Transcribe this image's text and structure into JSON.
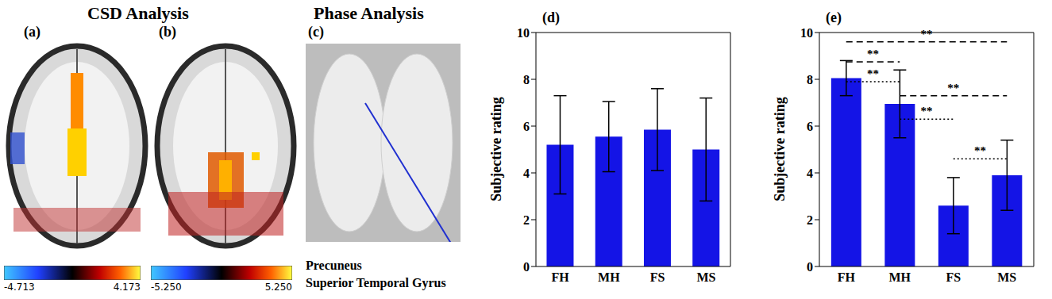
{
  "headings": {
    "csd": "CSD Analysis",
    "phase": "Phase Analysis"
  },
  "brain_panels": [
    {
      "label": "(a)",
      "colorbar": {
        "range": [
          -4.713,
          4.173
        ],
        "ticks": [
          {
            "value": -4.713,
            "label": "-4.713"
          },
          {
            "value": 4.173,
            "label": "4.173"
          }
        ]
      }
    },
    {
      "label": "(b)",
      "colorbar": {
        "range": [
          -5.25,
          5.25
        ],
        "ticks": [
          {
            "value": -5.25,
            "label": "-5.250"
          },
          {
            "value": 5.25,
            "label": "5.250"
          }
        ]
      }
    },
    {
      "label": "(c)",
      "regions": [
        "Precuneus",
        "Superior Temporal Gyrus"
      ]
    }
  ],
  "chart_data": [
    {
      "type": "bar",
      "title": "(d)",
      "ylabel": "Subjective rating",
      "categories": [
        "FH",
        "MH",
        "FS",
        "MS"
      ],
      "values": [
        5.2,
        5.55,
        5.85,
        5.0
      ],
      "errors": [
        2.1,
        1.5,
        1.75,
        2.2
      ],
      "color": "#1414e6",
      "ylim": [
        0,
        10
      ],
      "yticks": [
        0,
        2,
        4,
        6,
        8,
        10
      ],
      "annotations": []
    },
    {
      "type": "bar",
      "title": "(e)",
      "ylabel": "Subjective rating",
      "categories": [
        "FH",
        "MH",
        "FS",
        "MS"
      ],
      "values": [
        8.05,
        6.95,
        2.6,
        3.9
      ],
      "errors": [
        0.75,
        1.45,
        1.2,
        1.5
      ],
      "color": "#1414e6",
      "ylim": [
        0,
        10
      ],
      "yticks": [
        0,
        2,
        4,
        6,
        8,
        10
      ],
      "annotations": [
        {
          "from": "FH",
          "to": "MS",
          "text": "**",
          "line_style": "dashed"
        },
        {
          "from": "FH",
          "to": "MH",
          "text": "**",
          "line_style": "dashed"
        },
        {
          "from": "FH",
          "to": "MH",
          "text": "**",
          "line_style": "dotted"
        },
        {
          "from": "MH",
          "to": "MS",
          "text": "**",
          "line_style": "dashed"
        },
        {
          "from": "MH",
          "to": "FS",
          "text": "**",
          "line_style": "dotted"
        },
        {
          "from": "FS",
          "to": "MS",
          "text": "**",
          "line_style": "dotted"
        }
      ]
    }
  ]
}
